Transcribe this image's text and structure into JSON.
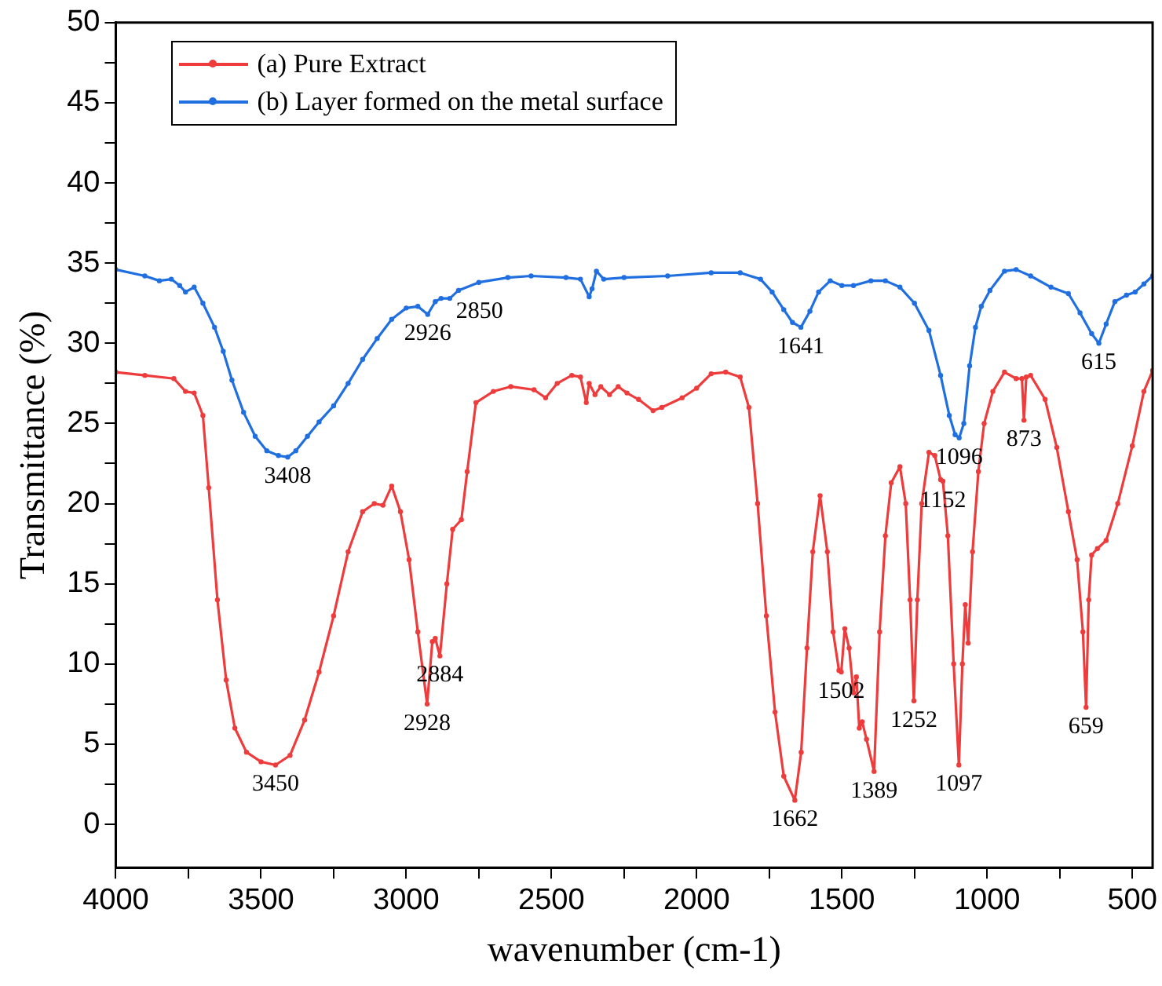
{
  "chart_data": {
    "type": "line",
    "xlabel": "wavenumber (cm-1)",
    "ylabel": "Transmittance (%)",
    "xlim": [
      4000,
      430
    ],
    "ylim": [
      -2.7,
      50
    ],
    "xticks": [
      4000,
      {
        "value": 3750,
        "label": null
      },
      3500,
      {
        "value": 3250,
        "label": null
      },
      3000,
      {
        "value": 2750,
        "label": null
      },
      2500,
      {
        "value": 2250,
        "label": null
      },
      2000,
      {
        "value": 1750,
        "label": null
      },
      1500,
      {
        "value": 1250,
        "label": null
      },
      1000,
      {
        "value": 750,
        "label": null
      },
      500
    ],
    "yticks": [
      0,
      {
        "value": 2.5,
        "label": null
      },
      5,
      {
        "value": 7.5,
        "label": null
      },
      10,
      {
        "value": 12.5,
        "label": null
      },
      15,
      {
        "value": 17.5,
        "label": null
      },
      20,
      {
        "value": 22.5,
        "label": null
      },
      25,
      {
        "value": 27.5,
        "label": null
      },
      30,
      {
        "value": 32.5,
        "label": null
      },
      35,
      {
        "value": 37.5,
        "label": null
      },
      40,
      {
        "value": 42.5,
        "label": null
      },
      45,
      {
        "value": 47.5,
        "label": null
      },
      50
    ],
    "grid": false,
    "legend": "top left",
    "marker": "circle",
    "line_style": "solid",
    "series": [
      {
        "name": "(a) Pure Extract",
        "color": "#ee3b3b",
        "x": [
          4000,
          3900,
          3800,
          3760,
          3730,
          3700,
          3680,
          3650,
          3620,
          3590,
          3550,
          3500,
          3450,
          3400,
          3350,
          3300,
          3250,
          3200,
          3150,
          3110,
          3080,
          3050,
          3020,
          2990,
          2960,
          2928,
          2910,
          2900,
          2884,
          2860,
          2840,
          2810,
          2790,
          2760,
          2700,
          2640,
          2560,
          2520,
          2480,
          2430,
          2400,
          2380,
          2370,
          2350,
          2330,
          2300,
          2270,
          2240,
          2200,
          2150,
          2120,
          2050,
          2000,
          1950,
          1900,
          1850,
          1820,
          1790,
          1760,
          1730,
          1700,
          1662,
          1640,
          1620,
          1600,
          1575,
          1550,
          1530,
          1510,
          1502,
          1490,
          1475,
          1460,
          1450,
          1440,
          1430,
          1415,
          1389,
          1370,
          1350,
          1330,
          1300,
          1280,
          1265,
          1252,
          1240,
          1225,
          1200,
          1180,
          1160,
          1152,
          1135,
          1115,
          1097,
          1085,
          1075,
          1065,
          1050,
          1030,
          1010,
          980,
          940,
          900,
          880,
          873,
          865,
          850,
          800,
          760,
          720,
          690,
          670,
          659,
          650,
          640,
          620,
          590,
          550,
          500,
          460,
          430
        ],
        "values": [
          28.2,
          28.0,
          27.8,
          27.0,
          26.9,
          25.5,
          21,
          14,
          9,
          6,
          4.5,
          3.9,
          3.7,
          4.3,
          6.5,
          9.5,
          13,
          17,
          19.5,
          20,
          19.9,
          21.1,
          19.5,
          16.5,
          12,
          7.5,
          11.4,
          11.6,
          10.5,
          15,
          18.4,
          19,
          22,
          26.3,
          27,
          27.3,
          27.1,
          26.6,
          27.5,
          28,
          27.9,
          26.3,
          27.5,
          26.8,
          27.3,
          26.8,
          27.3,
          26.9,
          26.5,
          25.8,
          26.0,
          26.6,
          27.2,
          28.1,
          28.2,
          27.9,
          26,
          20,
          13,
          7,
          3,
          1.5,
          4.5,
          11,
          17,
          20.5,
          17,
          12,
          9.6,
          9.5,
          12.2,
          11,
          8.2,
          9.2,
          6,
          6.4,
          5.3,
          3.3,
          12,
          18,
          21.3,
          22.3,
          20,
          14,
          7.7,
          14,
          20,
          23.2,
          23,
          21.5,
          21.4,
          18,
          10,
          3.7,
          10,
          13.7,
          11.3,
          17,
          22,
          25,
          27,
          28.2,
          27.8,
          27.8,
          25.2,
          27.9,
          28,
          26.5,
          23.5,
          19.5,
          16.5,
          12,
          7.3,
          14,
          16.8,
          17.2,
          17.7,
          20,
          23.6,
          27,
          28.3
        ]
      },
      {
        "name": "(b) Layer formed on the metal surface",
        "color": "#1f6fe0",
        "x": [
          4000,
          3900,
          3850,
          3809,
          3780,
          3760,
          3730,
          3700,
          3660,
          3630,
          3600,
          3560,
          3520,
          3480,
          3440,
          3408,
          3380,
          3340,
          3300,
          3250,
          3200,
          3150,
          3100,
          3050,
          3000,
          2960,
          2926,
          2900,
          2880,
          2850,
          2820,
          2750,
          2650,
          2570,
          2450,
          2400,
          2370,
          2360,
          2345,
          2320,
          2250,
          2100,
          1950,
          1850,
          1780,
          1740,
          1700,
          1670,
          1641,
          1610,
          1580,
          1540,
          1500,
          1460,
          1400,
          1350,
          1300,
          1250,
          1200,
          1160,
          1130,
          1110,
          1096,
          1080,
          1060,
          1040,
          1020,
          990,
          940,
          900,
          850,
          780,
          720,
          680,
          640,
          615,
          590,
          560,
          520,
          490,
          460,
          430
        ],
        "values": [
          34.6,
          34.2,
          33.9,
          34.0,
          33.6,
          33.2,
          33.5,
          32.5,
          31,
          29.5,
          27.7,
          25.7,
          24.2,
          23.3,
          23.0,
          22.9,
          23.3,
          24.2,
          25.1,
          26.1,
          27.5,
          29,
          30.3,
          31.5,
          32.2,
          32.3,
          31.8,
          32.6,
          32.8,
          32.8,
          33.3,
          33.8,
          34.1,
          34.2,
          34.1,
          34.0,
          32.9,
          33.4,
          34.5,
          34.0,
          34.1,
          34.2,
          34.4,
          34.4,
          34.0,
          33.2,
          32.1,
          31.3,
          31.0,
          32,
          33.2,
          33.9,
          33.6,
          33.6,
          33.9,
          33.9,
          33.5,
          32.5,
          30.8,
          28.0,
          25.5,
          24.3,
          24.1,
          25,
          28.6,
          31,
          32.3,
          33.3,
          34.5,
          34.6,
          34.2,
          33.5,
          33.1,
          31.9,
          30.6,
          30.0,
          31.2,
          32.6,
          33.0,
          33.2,
          33.7,
          34.2
        ]
      }
    ],
    "annotations": [
      {
        "text": "3450",
        "x": 3450,
        "y": 3.7
      },
      {
        "text": "2928",
        "x": 2928,
        "y": 7.5
      },
      {
        "text": "2884",
        "x": 2884,
        "y": 10.5
      },
      {
        "text": "3408",
        "x": 3408,
        "y": 22.9
      },
      {
        "text": "2926",
        "x": 2926,
        "y": 31.8
      },
      {
        "text": "2850",
        "x": 2850,
        "y": 32.8
      },
      {
        "text": "1641",
        "x": 1641,
        "y": 31.0
      },
      {
        "text": "1096",
        "x": 1096,
        "y": 24.1
      },
      {
        "text": "615",
        "x": 615,
        "y": 30.0
      },
      {
        "text": "873",
        "x": 873,
        "y": 25.2
      },
      {
        "text": "1152",
        "x": 1152,
        "y": 21.4
      },
      {
        "text": "1662",
        "x": 1662,
        "y": 1.5
      },
      {
        "text": "1502",
        "x": 1502,
        "y": 9.5
      },
      {
        "text": "1389",
        "x": 1389,
        "y": 3.3
      },
      {
        "text": "1252",
        "x": 1252,
        "y": 7.7
      },
      {
        "text": "1097",
        "x": 1097,
        "y": 3.7
      },
      {
        "text": "659",
        "x": 659,
        "y": 7.3
      }
    ]
  }
}
